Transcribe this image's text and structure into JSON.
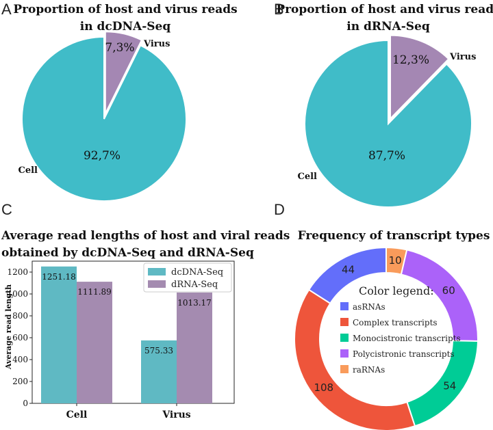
{
  "panels": {
    "a": {
      "letter": "A"
    },
    "b": {
      "letter": "B"
    },
    "c": {
      "letter": "C"
    },
    "d": {
      "letter": "D"
    }
  },
  "chart_data": [
    {
      "id": "pie_a",
      "type": "pie",
      "title_lines": [
        "Proportion of host and virus reads",
        "in dcDNA-Seq"
      ],
      "slices": [
        {
          "name": "Virus",
          "value": 7.3,
          "label": "7,3%",
          "color": "#a487b3",
          "exploded": true
        },
        {
          "name": "Cell",
          "value": 92.7,
          "label": "92,7%",
          "color": "#40bcc8",
          "exploded": false
        }
      ]
    },
    {
      "id": "pie_b",
      "type": "pie",
      "title_lines": [
        "Proportion of host and virus reads",
        "in dRNA-Seq"
      ],
      "slices": [
        {
          "name": "Virus",
          "value": 12.3,
          "label": "12,3%",
          "color": "#a487b3",
          "exploded": true
        },
        {
          "name": "Cell",
          "value": 87.7,
          "label": "87,7%",
          "color": "#40bcc8",
          "exploded": false
        }
      ]
    },
    {
      "id": "bar_c",
      "type": "bar",
      "title_lines": [
        "Average read lengths of host and viral reads",
        "obtained by dcDNA-Seq and dRNA-Seq"
      ],
      "categories": [
        "Cell",
        "Virus"
      ],
      "series": [
        {
          "name": "dcDNA-Seq",
          "color": "#5fb9c3",
          "values": [
            1251.18,
            575.33
          ],
          "labels": [
            "1251.18",
            "575.33"
          ]
        },
        {
          "name": "dRNA-Seq",
          "color": "#a48bb0",
          "values": [
            1111.89,
            1013.17
          ],
          "labels": [
            "1111.89",
            "1013.17"
          ]
        }
      ],
      "ylabel": "Average read length",
      "ylim": [
        0,
        1300
      ],
      "yticks": [
        0,
        200,
        400,
        600,
        800,
        1000,
        1200
      ],
      "legend_position": "top-right"
    },
    {
      "id": "donut_d",
      "type": "pie",
      "donut": true,
      "title": "Frequency of transcript types",
      "legend_title": "Color legend:",
      "slices": [
        {
          "name": "raRNAs",
          "value": 10,
          "label": "10",
          "color": "#f99b5b"
        },
        {
          "name": "Polycistronic transcripts",
          "value": 60,
          "label": "60",
          "color": "#ab62f9"
        },
        {
          "name": "Monocistronic transcripts",
          "value": 54,
          "label": "54",
          "color": "#00cc96"
        },
        {
          "name": "Complex transcripts",
          "value": 108,
          "label": "108",
          "color": "#ee553b"
        },
        {
          "name": "asRNAs",
          "value": 44,
          "label": "44",
          "color": "#636efa"
        }
      ],
      "legend_order": [
        "asRNAs",
        "Complex transcripts",
        "Monocistronic transcripts",
        "Polycistronic transcripts",
        "raRNAs"
      ]
    }
  ]
}
